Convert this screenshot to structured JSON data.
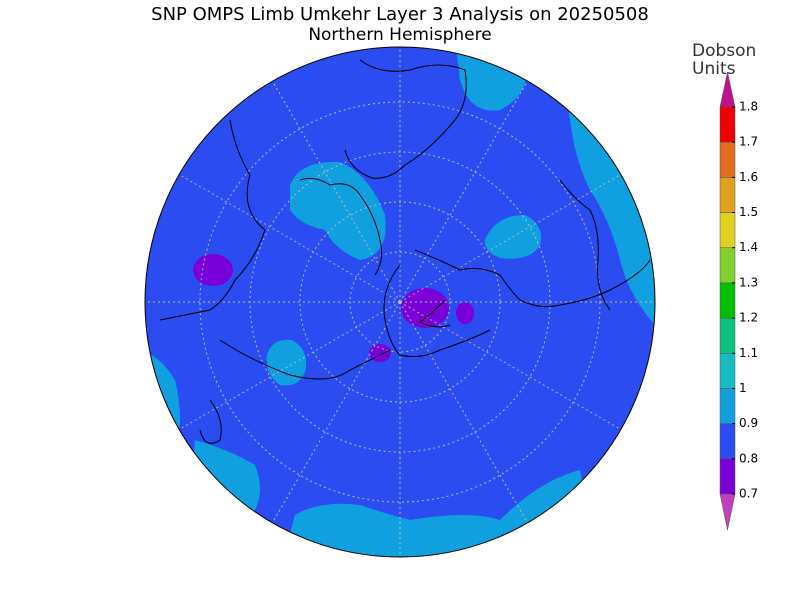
{
  "title": "SNP OMPS Limb Umkehr Layer 3 Analysis on 20250508",
  "subtitle": "Northern Hemisphere",
  "colorbar": {
    "label_lines": [
      "Dobson",
      "Units"
    ],
    "ticks": [
      0.7,
      0.8,
      0.9,
      1,
      1.1,
      1.2,
      1.3,
      1.4,
      1.5,
      1.6,
      1.7,
      1.8
    ],
    "colors": [
      "#7a00d8",
      "#2a4cf0",
      "#10a0e0",
      "#18bcc0",
      "#10c080",
      "#00c000",
      "#80d030",
      "#e0d020",
      "#e0a020",
      "#e07020",
      "#f00000"
    ],
    "under_color": "#c040c0",
    "over_color": "#c0108f"
  }
}
